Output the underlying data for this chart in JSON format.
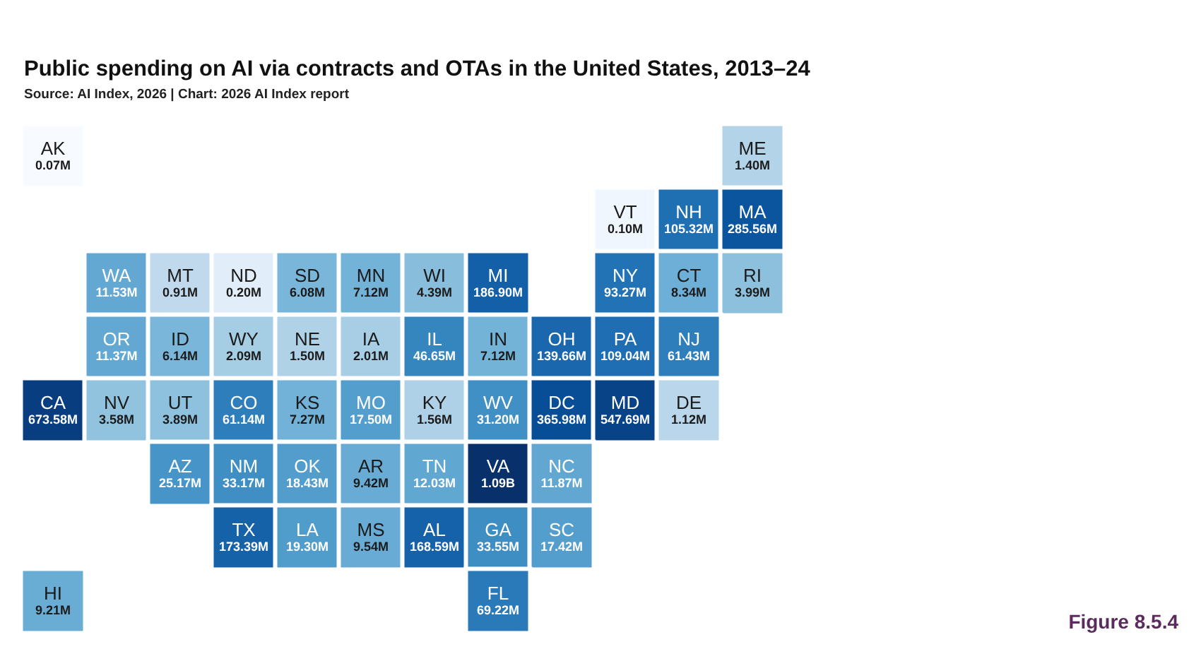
{
  "chart_data": {
    "type": "other",
    "title": "Public spending on AI via contracts and OTAs in the United States, 2013–24",
    "subtitle": "Source: AI Index, 2026 | Chart: 2026 AI Index report",
    "annotations": [
      "Figure 8.5.4"
    ],
    "categories": [
      "AK",
      "ME",
      "VT",
      "NH",
      "MA",
      "WA",
      "MT",
      "ND",
      "SD",
      "MN",
      "WI",
      "MI",
      "NY",
      "CT",
      "RI",
      "OR",
      "ID",
      "WY",
      "NE",
      "IA",
      "IL",
      "IN",
      "OH",
      "PA",
      "NJ",
      "CA",
      "NV",
      "UT",
      "CO",
      "KS",
      "MO",
      "KY",
      "WV",
      "DC",
      "MD",
      "DE",
      "AZ",
      "NM",
      "OK",
      "AR",
      "TN",
      "VA",
      "NC",
      "TX",
      "LA",
      "MS",
      "AL",
      "GA",
      "SC",
      "HI",
      "FL"
    ],
    "values": [
      70000,
      1400000,
      100000,
      105320000,
      285560000,
      11530000,
      910000,
      200000,
      6080000,
      7120000,
      4390000,
      186900000,
      93270000,
      8340000,
      3990000,
      11370000,
      6140000,
      2090000,
      1500000,
      2010000,
      46650000,
      7120000,
      139660000,
      109040000,
      61430000,
      673580000,
      3580000,
      3890000,
      61140000,
      7270000,
      17500000,
      1560000,
      31200000,
      365980000,
      547690000,
      1120000,
      25170000,
      33170000,
      18430000,
      9420000,
      12030000,
      1090000000,
      11870000,
      173390000,
      19300000,
      9540000,
      168590000,
      33550000,
      17420000,
      9210000,
      69220000
    ],
    "value_labels": [
      "0.07M",
      "1.40M",
      "0.10M",
      "105.32M",
      "285.56M",
      "11.53M",
      "0.91M",
      "0.20M",
      "6.08M",
      "7.12M",
      "4.39M",
      "186.90M",
      "93.27M",
      "8.34M",
      "3.99M",
      "11.37M",
      "6.14M",
      "2.09M",
      "1.50M",
      "2.01M",
      "46.65M",
      "7.12M",
      "139.66M",
      "109.04M",
      "61.43M",
      "673.58M",
      "3.58M",
      "3.89M",
      "61.14M",
      "7.27M",
      "17.50M",
      "1.56M",
      "31.20M",
      "365.98M",
      "547.69M",
      "1.12M",
      "25.17M",
      "33.17M",
      "18.43M",
      "9.42M",
      "12.03M",
      "1.09B",
      "11.87M",
      "173.39M",
      "19.30M",
      "9.54M",
      "168.59M",
      "33.55M",
      "17.42M",
      "9.21M",
      "69.22M"
    ]
  }
}
